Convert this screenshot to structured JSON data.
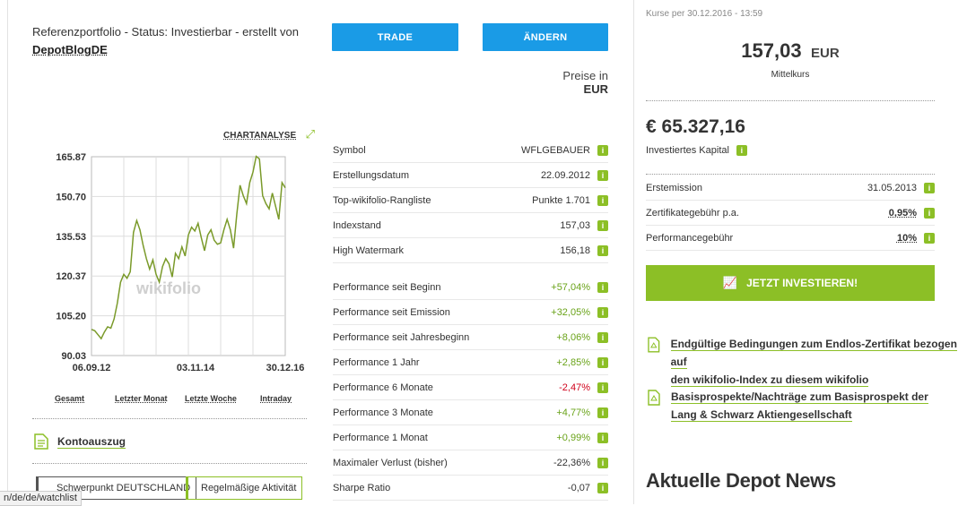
{
  "header": {
    "title_prefix": "Referenzportfolio - Status: Investierbar - erstellt von",
    "author": "DepotBlogDE"
  },
  "buttons": {
    "trade": "TRADE",
    "change": "ÄNDERN",
    "invest": "JETZT INVESTIEREN!"
  },
  "prices_label": "Preise in",
  "prices_currency": "EUR",
  "chart": {
    "analysis_link": "CHARTANALYSE",
    "watermark": "wikifolio",
    "periods": [
      "Gesamt",
      "Letzter Monat",
      "Letzte Woche",
      "Intraday"
    ]
  },
  "chart_data": {
    "type": "line",
    "title": "",
    "xlabel": "",
    "ylabel": "",
    "x_ticks": [
      "06.09.12",
      "03.11.14",
      "30.12.16"
    ],
    "y_ticks": [
      "165.87",
      "150.70",
      "135.53",
      "120.37",
      "105.20",
      "90.03"
    ],
    "ylim": [
      90.03,
      165.87
    ],
    "color": "#7a9a2a",
    "series": [
      {
        "values": [
          100,
          99.5,
          98,
          96.5,
          99,
          101,
          100.5,
          104,
          110,
          118,
          121,
          119.5,
          122,
          137,
          141.5,
          138,
          132,
          127,
          123,
          126.5,
          121,
          118,
          124,
          127,
          125,
          120,
          129,
          127,
          131.5,
          128,
          136,
          139,
          137.5,
          140.5,
          135,
          130,
          136,
          138,
          134,
          132.5,
          133,
          138,
          142,
          138,
          131,
          144,
          155,
          151,
          148,
          156,
          160,
          166,
          165,
          151,
          148,
          146,
          152,
          147,
          142,
          156,
          154
        ]
      }
    ]
  },
  "details": [
    {
      "label": "Symbol",
      "value": "WFLGEBAUER",
      "cls": ""
    },
    {
      "label": "Erstellungsdatum",
      "value": "22.09.2012",
      "cls": ""
    },
    {
      "label": "Top-wikifolio-Rangliste",
      "value": "Punkte 1.701",
      "cls": ""
    },
    {
      "label": "Indexstand",
      "value": "157,03",
      "cls": ""
    },
    {
      "label": "High Watermark",
      "value": "156,18",
      "cls": ""
    }
  ],
  "performance": [
    {
      "label": "Performance seit Beginn",
      "value": "+57,04%",
      "cls": "pos"
    },
    {
      "label": "Performance seit Emission",
      "value": "+32,05%",
      "cls": "pos"
    },
    {
      "label": "Performance seit Jahresbeginn",
      "value": "+8,06%",
      "cls": "pos"
    },
    {
      "label": "Performance 1 Jahr",
      "value": "+2,85%",
      "cls": "pos"
    },
    {
      "label": "Performance 6 Monate",
      "value": "-2,47%",
      "cls": "neg"
    },
    {
      "label": "Performance 3 Monate",
      "value": "+4,77%",
      "cls": "pos"
    },
    {
      "label": "Performance 1 Monat",
      "value": "+0,99%",
      "cls": "pos"
    },
    {
      "label": "Maximaler Verlust (bisher)",
      "value": "-22,36%",
      "cls": ""
    },
    {
      "label": "Sharpe Ratio",
      "value": "-0,07",
      "cls": ""
    }
  ],
  "info_badge": "i",
  "kontoauszug": "Kontoauszug",
  "tags": [
    "Schwerpunkt DEUTSCHLAND",
    "Regelmäßige Aktivität"
  ],
  "status_url": "n/de/de/watchlist",
  "right": {
    "quote_time": "Kurse per 30.12.2016 - 13:59",
    "price": "157,03",
    "price_currency": "EUR",
    "price_label": "Mittelkurs",
    "capital": "€ 65.327,16",
    "capital_label": "Investiertes Kapital",
    "facts": [
      {
        "label": "Erstemission",
        "value": "31.05.2013",
        "link": false
      },
      {
        "label": "Zertifikategebühr p.a.",
        "value": "0,95%",
        "link": true
      },
      {
        "label": "Performancegebühr",
        "value": "10%",
        "link": true
      }
    ],
    "docs": [
      {
        "line1": "Endgültige Bedingungen zum Endlos-Zertifikat bezogen auf",
        "line2": "den wikifolio-Index zu diesem wikifolio"
      },
      {
        "line1": "Basisprospekte/Nachträge zum Basisprospekt der",
        "line2": "Lang & Schwarz Aktiengesellschaft"
      }
    ],
    "news_title": "Aktuelle Depot News"
  },
  "colors": {
    "accent_green": "#8cbf26",
    "accent_blue": "#1a9be6",
    "negative": "#d0021b"
  }
}
